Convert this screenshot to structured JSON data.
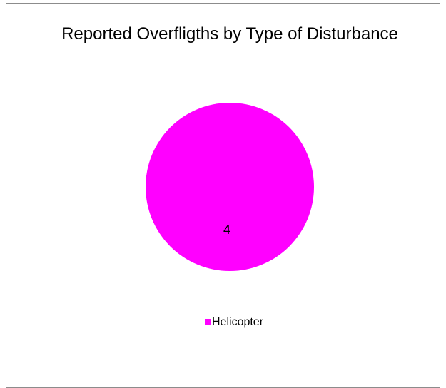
{
  "chart_data": {
    "type": "pie",
    "title": "Reported Overfligths by Type of Disturbance",
    "categories": [
      "Helicopter"
    ],
    "values": [
      4
    ],
    "colors": [
      "#ff00ff"
    ]
  }
}
